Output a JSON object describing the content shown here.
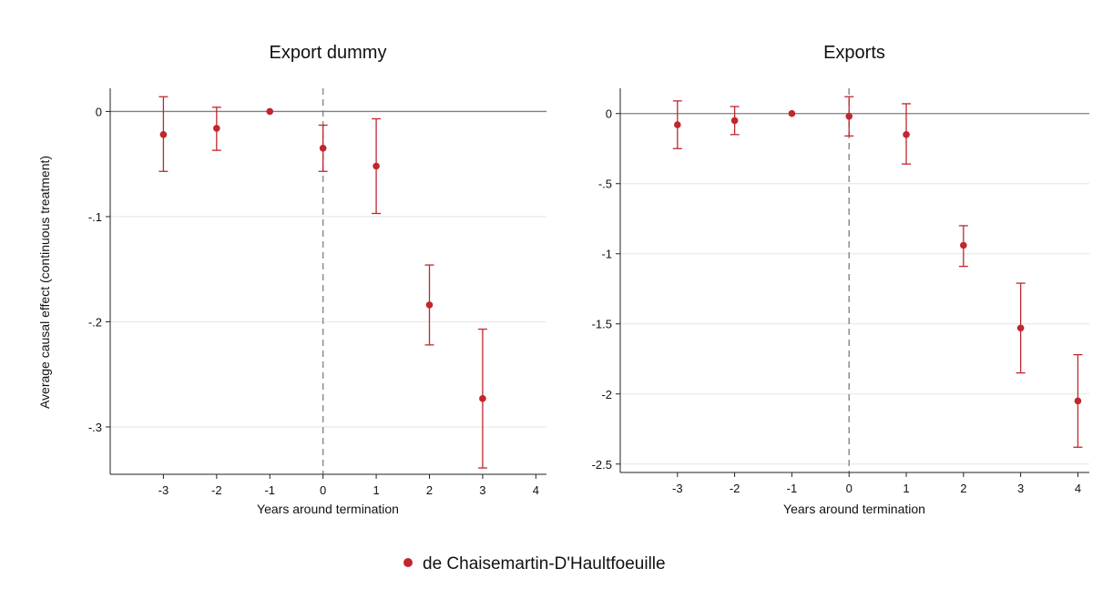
{
  "ylabel": "Average causal effect (continuous treatment)",
  "legend": {
    "label": "de Chaisemartin-D'Haultfoeuille",
    "placement": "bottom-center"
  },
  "colors": {
    "marker": "#c1272d",
    "zero_line": "#7f7f7f",
    "grid": "#e6e6e6",
    "event_line": "#8c8c8c"
  },
  "chart_data": [
    {
      "type": "scatter",
      "title": "Export dummy",
      "xlabel": "Years around termination",
      "xlim": [
        -4,
        4.2
      ],
      "xticks": [
        -3,
        -2,
        -1,
        0,
        1,
        2,
        3,
        4
      ],
      "xtick_labels": [
        "-3",
        "-2",
        "-1",
        "0",
        "1",
        "2",
        "3",
        "4"
      ],
      "ylim": [
        -0.345,
        0.022
      ],
      "yticks": [
        0,
        -0.1,
        -0.2,
        -0.3
      ],
      "ytick_labels": [
        "0",
        "-.1",
        "-.2",
        "-.3"
      ],
      "grid": true,
      "event_line_x": 0,
      "series": [
        {
          "name": "de Chaisemartin-D'Haultfoeuille",
          "x": [
            -3,
            -2,
            -1,
            0,
            1,
            2,
            3
          ],
          "y": [
            -0.022,
            -0.016,
            0,
            -0.035,
            -0.052,
            -0.184,
            -0.273
          ],
          "ci_low": [
            -0.057,
            -0.037,
            0,
            -0.057,
            -0.097,
            -0.222,
            -0.339
          ],
          "ci_high": [
            0.014,
            0.004,
            0,
            -0.013,
            -0.007,
            -0.146,
            -0.207
          ]
        }
      ]
    },
    {
      "type": "scatter",
      "title": "Exports",
      "xlabel": "Years around termination",
      "xlim": [
        -4,
        4.2
      ],
      "xticks": [
        -3,
        -2,
        -1,
        0,
        1,
        2,
        3,
        4
      ],
      "xtick_labels": [
        "-3",
        "-2",
        "-1",
        "0",
        "1",
        "2",
        "3",
        "4"
      ],
      "ylim": [
        -2.56,
        0.18
      ],
      "yticks": [
        0,
        -0.5,
        -1,
        -1.5,
        -2,
        -2.5
      ],
      "ytick_labels": [
        "0",
        "-.5",
        "-1",
        "-1.5",
        "-2",
        "-2.5"
      ],
      "grid": true,
      "event_line_x": 0,
      "series": [
        {
          "name": "de Chaisemartin-D'Haultfoeuille",
          "x": [
            -3,
            -2,
            -1,
            0,
            1,
            2,
            3,
            4
          ],
          "y": [
            -0.08,
            -0.05,
            0,
            -0.02,
            -0.15,
            -0.94,
            -1.53,
            -2.05
          ],
          "ci_low": [
            -0.25,
            -0.15,
            0,
            -0.16,
            -0.36,
            -1.09,
            -1.85,
            -2.38
          ],
          "ci_high": [
            0.09,
            0.05,
            0,
            0.12,
            0.07,
            -0.8,
            -1.21,
            -1.72
          ]
        }
      ]
    }
  ]
}
